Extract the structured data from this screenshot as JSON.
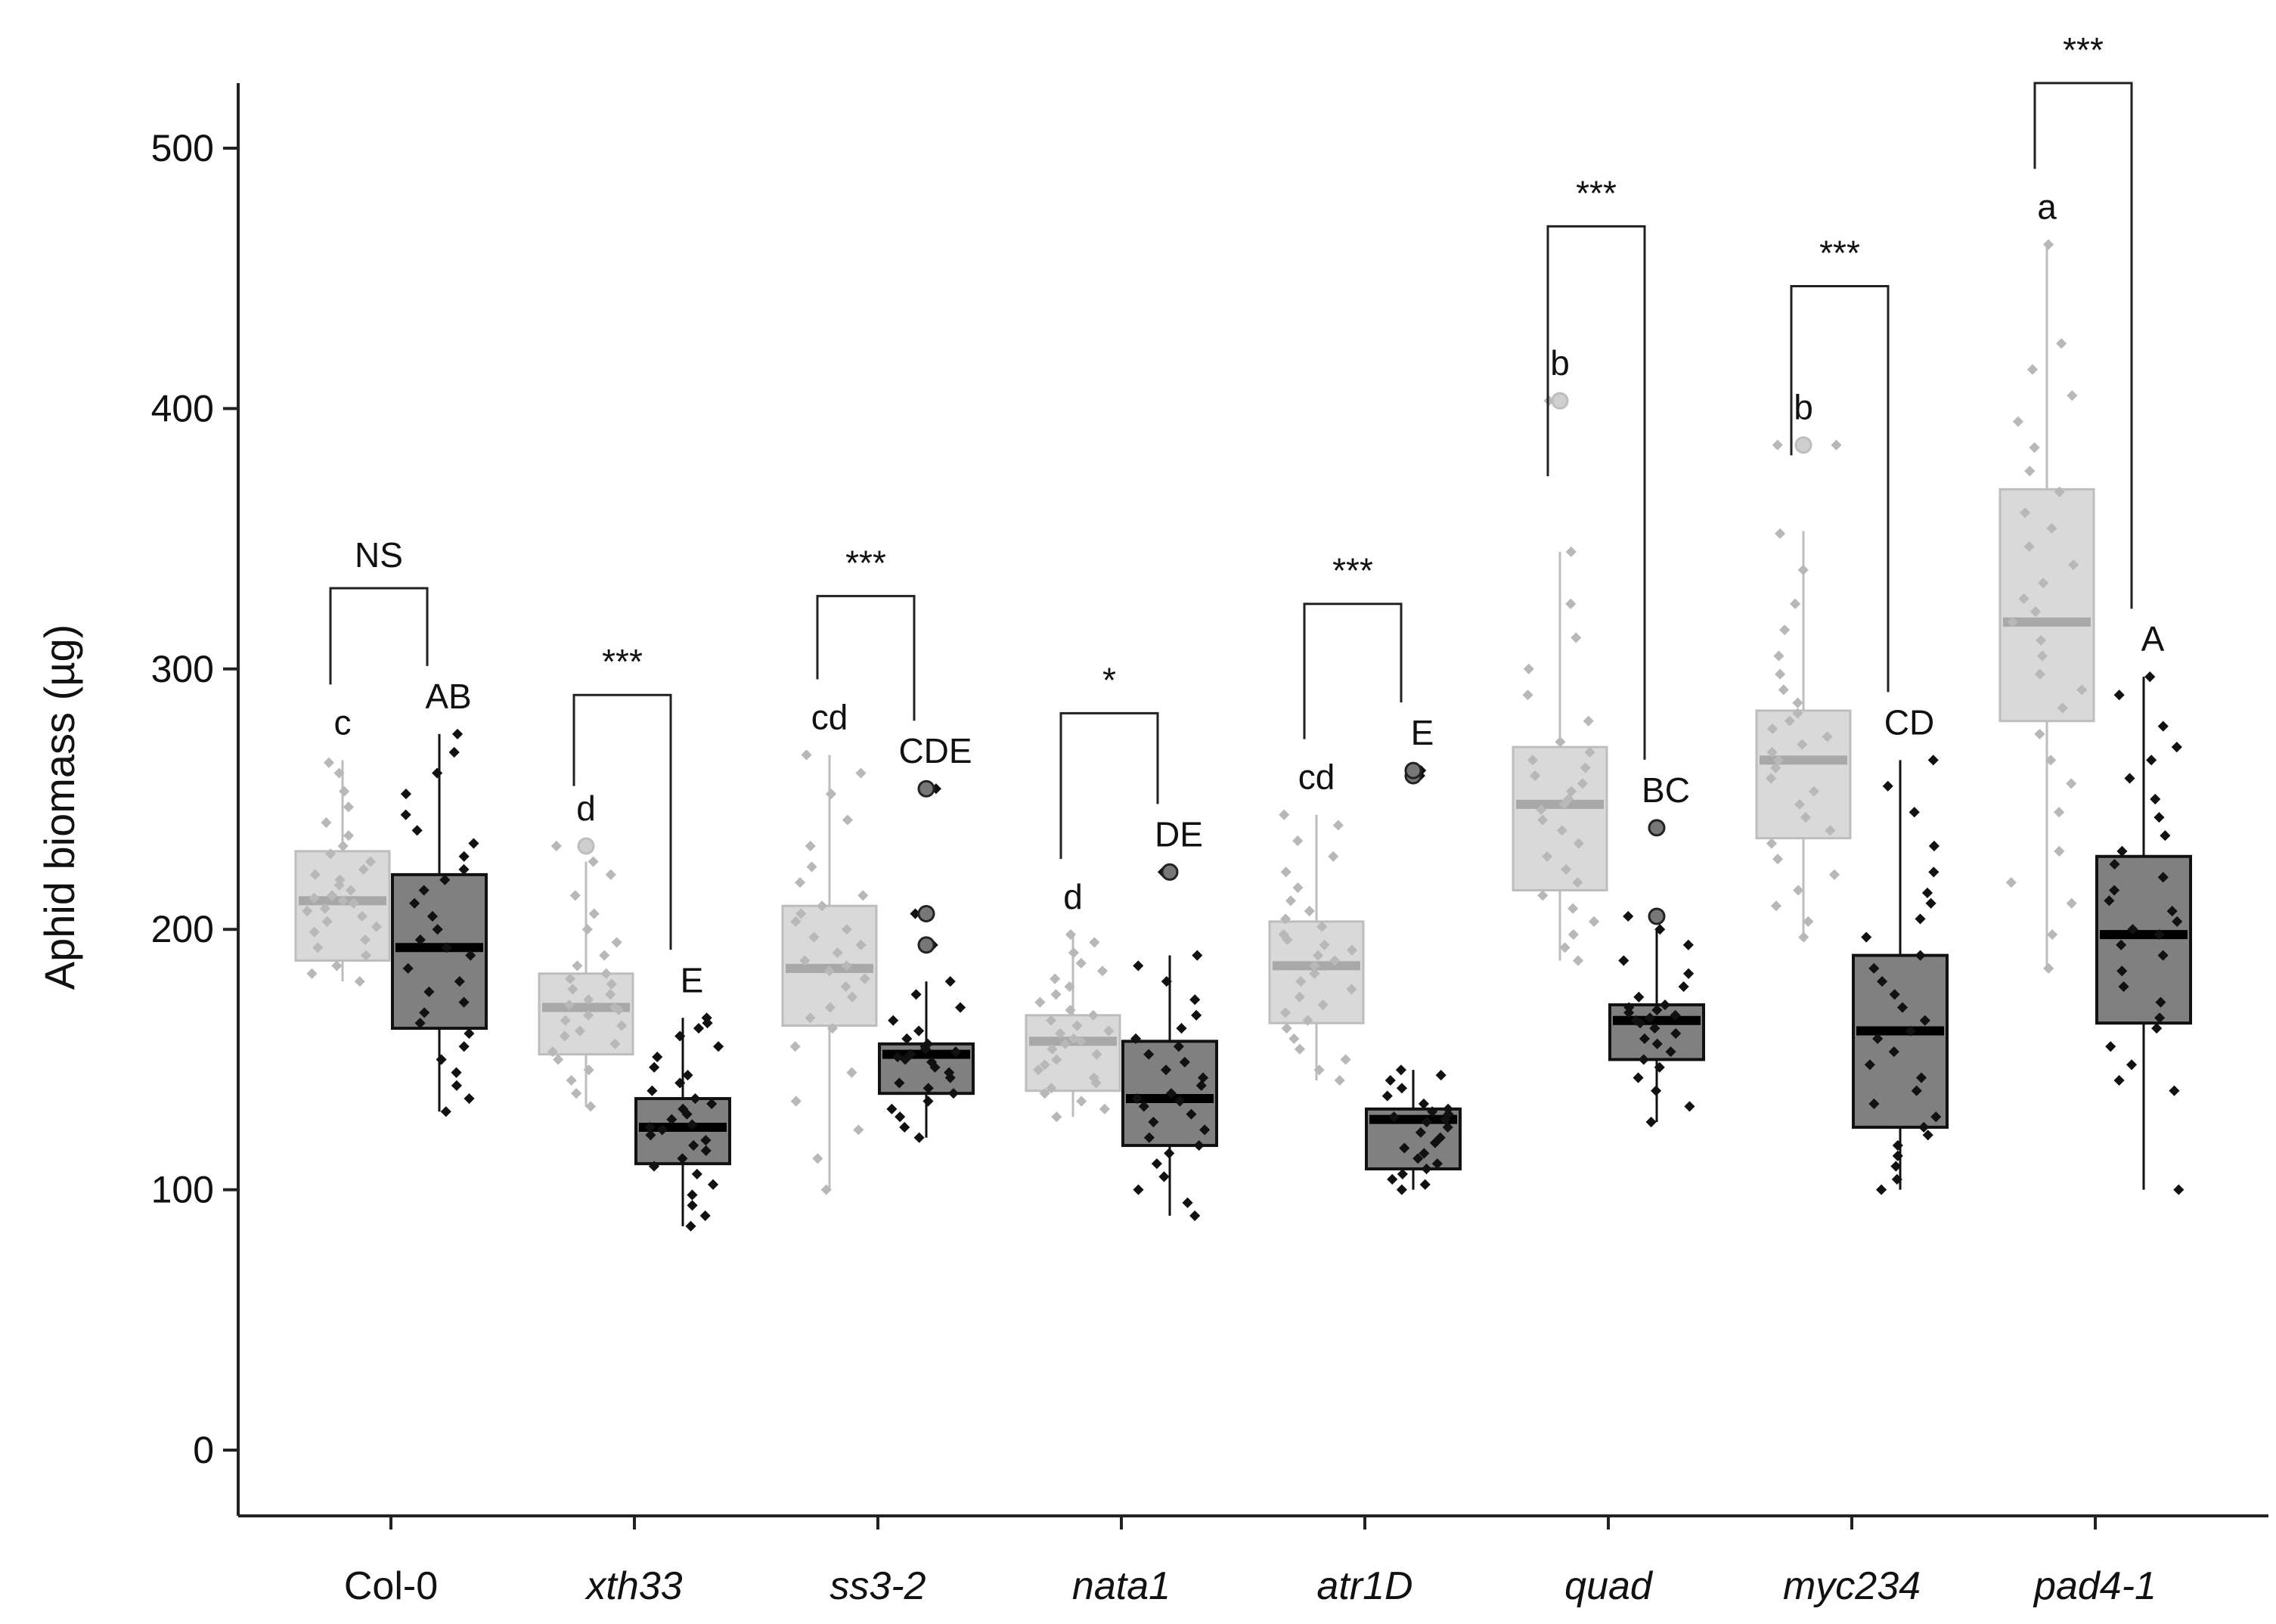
{
  "chart_data": {
    "type": "box",
    "title": "",
    "xlabel": "",
    "ylabel": "Aphid biomass (µg)",
    "ylim": [
      0,
      520
    ],
    "yticks": [
      "0",
      "100",
      "200",
      "300",
      "400",
      "500"
    ],
    "grid": false,
    "categories": [
      "Col-0",
      "xth33",
      "ss3-2",
      "nata1",
      "atr1D",
      "quad",
      "myc234",
      "pad4-1"
    ],
    "italic_categories": [
      false,
      true,
      true,
      true,
      true,
      true,
      true,
      true
    ],
    "series": [
      {
        "name": "light",
        "color": "#c8c8c8",
        "fill": "#d9d9d9",
        "boxes": [
          {
            "q1": 188,
            "median": 211,
            "q3": 230,
            "whisker_low": 180,
            "whisker_high": 265,
            "outliers": [],
            "letter": "c",
            "points": [
              180,
              183,
              186,
              190,
              193,
              196,
              199,
              201,
              203,
              205,
              207,
              208,
              210,
              211,
              212,
              213,
              215,
              217,
              219,
              221,
              223,
              226,
              229,
              232,
              236,
              241,
              247,
              253,
              260,
              264
            ]
          },
          {
            "q1": 152,
            "median": 170,
            "q3": 183,
            "whisker_low": 132,
            "whisker_high": 226,
            "outliers": [
              232
            ],
            "letter": "d",
            "points": [
              132,
              137,
              142,
              146,
              150,
              153,
              156,
              159,
              161,
              163,
              165,
              167,
              169,
              170,
              171,
              173,
              175,
              177,
              179,
              181,
              183,
              186,
              190,
              195,
              200,
              206,
              213,
              221,
              226,
              232
            ]
          },
          {
            "q1": 163,
            "median": 185,
            "q3": 209,
            "whisker_low": 100,
            "whisker_high": 267,
            "outliers": [],
            "letter": "cd",
            "points": [
              100,
              112,
              123,
              134,
              145,
              155,
              162,
              166,
              170,
              174,
              178,
              181,
              184,
              186,
              188,
              191,
              194,
              197,
              200,
              203,
              206,
              209,
              213,
              218,
              224,
              232,
              242,
              252,
              260,
              267
            ]
          },
          {
            "q1": 138,
            "median": 157,
            "q3": 167,
            "whisker_low": 128,
            "whisker_high": 198,
            "outliers": [],
            "letter": "d",
            "points": [
              128,
              131,
              134,
              137,
              139,
              141,
              143,
              146,
              148,
              150,
              152,
              154,
              156,
              157,
              158,
              160,
              161,
              163,
              165,
              167,
              169,
              172,
              175,
              178,
              181,
              184,
              187,
              191,
              195,
              198
            ]
          },
          {
            "q1": 164,
            "median": 186,
            "q3": 203,
            "whisker_low": 142,
            "whisker_high": 244,
            "outliers": [],
            "letter": "cd",
            "points": [
              142,
              146,
              150,
              154,
              158,
              162,
              165,
              168,
              171,
              174,
              177,
              180,
              183,
              186,
              188,
              190,
              192,
              194,
              196,
              198,
              201,
              204,
              207,
              211,
              216,
              222,
              228,
              234,
              240,
              244
            ]
          },
          {
            "q1": 215,
            "median": 248,
            "q3": 270,
            "whisker_low": 188,
            "whisker_high": 345,
            "outliers": [
              403
            ],
            "letter": "b",
            "points": [
              188,
              193,
              198,
              203,
              208,
              213,
              218,
              223,
              228,
              233,
              238,
              242,
              246,
              248,
              250,
              253,
              256,
              259,
              262,
              265,
              268,
              272,
              280,
              290,
              300,
              312,
              325,
              345,
              403,
              403
            ]
          },
          {
            "q1": 235,
            "median": 265,
            "q3": 284,
            "whisker_low": 197,
            "whisker_high": 353,
            "outliers": [
              386
            ],
            "letter": "b",
            "points": [
              197,
              203,
              209,
              215,
              221,
              227,
              233,
              238,
              243,
              248,
              253,
              258,
              262,
              265,
              268,
              271,
              274,
              277,
              280,
              283,
              287,
              292,
              298,
              305,
              315,
              325,
              338,
              352,
              386,
              386
            ]
          },
          {
            "q1": 280,
            "median": 318,
            "q3": 369,
            "whisker_low": 185,
            "whisker_high": 463,
            "outliers": [],
            "letter": "a",
            "points": [
              185,
              198,
              210,
              218,
              230,
              245,
              256,
              265,
              275,
              285,
              292,
              298,
              305,
              311,
              318,
              322,
              327,
              333,
              340,
              347,
              354,
              360,
              368,
              376,
              385,
              395,
              405,
              415,
              425,
              463
            ]
          }
        ]
      },
      {
        "name": "dark",
        "color": "#000000",
        "fill": "#808080",
        "boxes": [
          {
            "q1": 162,
            "median": 193,
            "q3": 221,
            "whisker_low": 130,
            "whisker_high": 275,
            "outliers": [],
            "letter": "AB",
            "points": [
              130,
              135,
              140,
              145,
              150,
              155,
              160,
              164,
              168,
              172,
              176,
              180,
              185,
              190,
              193,
              196,
              200,
              205,
              210,
              215,
              219,
              223,
              228,
              233,
              238,
              244,
              252,
              260,
              268,
              275
            ]
          },
          {
            "q1": 110,
            "median": 124,
            "q3": 135,
            "whisker_low": 86,
            "whisker_high": 166,
            "outliers": [],
            "letter": "E",
            "points": [
              86,
              90,
              94,
              98,
              102,
              106,
              109,
              112,
              115,
              117,
              119,
              121,
              123,
              124,
              125,
              127,
              129,
              131,
              133,
              135,
              138,
              141,
              144,
              147,
              151,
              155,
              159,
              162,
              164,
              166
            ]
          },
          {
            "q1": 137,
            "median": 152,
            "q3": 156,
            "whisker_low": 120,
            "whisker_high": 180,
            "outliers": [
              194,
              206,
              254
            ],
            "letter": "CDE",
            "points": [
              120,
              124,
              128,
              131,
              134,
              137,
              139,
              141,
              143,
              145,
              147,
              149,
              150,
              151,
              152,
              153,
              154,
              155,
              156,
              158,
              161,
              165,
              170,
              175,
              180,
              194,
              206,
              254
            ]
          },
          {
            "q1": 117,
            "median": 135,
            "q3": 157,
            "whisker_low": 90,
            "whisker_high": 190,
            "outliers": [
              222
            ],
            "letter": "DE",
            "points": [
              90,
              95,
              100,
              105,
              110,
              114,
              117,
              120,
              123,
              126,
              129,
              132,
              134,
              135,
              137,
              140,
              143,
              146,
              149,
              152,
              155,
              158,
              162,
              167,
              173,
              180,
              186,
              190,
              222
            ]
          },
          {
            "q1": 108,
            "median": 127,
            "q3": 131,
            "whisker_low": 100,
            "whisker_high": 146,
            "outliers": [
              259,
              261
            ],
            "letter": "E",
            "points": [
              100,
              102,
              104,
              106,
              108,
              110,
              112,
              114,
              116,
              118,
              120,
              122,
              124,
              126,
              127,
              128,
              129,
              130,
              131,
              133,
              136,
              139,
              142,
              144,
              146,
              259,
              261
            ]
          },
          {
            "q1": 150,
            "median": 165,
            "q3": 171,
            "whisker_low": 126,
            "whisker_high": 200,
            "outliers": [
              205,
              239
            ],
            "letter": "BC",
            "points": [
              126,
              132,
              138,
              143,
              147,
              150,
              153,
              156,
              158,
              160,
              162,
              164,
              165,
              166,
              167,
              168,
              169,
              170,
              171,
              174,
              178,
              183,
              188,
              194,
              200,
              205,
              239
            ]
          },
          {
            "q1": 124,
            "median": 161,
            "q3": 190,
            "whisker_low": 100,
            "whisker_high": 265,
            "outliers": [],
            "letter": "CD",
            "points": [
              100,
              104,
              109,
              113,
              117,
              121,
              124,
              128,
              133,
              138,
              143,
              148,
              153,
              158,
              161,
              165,
              170,
              175,
              180,
              185,
              190,
              197,
              204,
              210,
              214,
              222,
              232,
              245,
              255,
              265
            ]
          },
          {
            "q1": 164,
            "median": 198,
            "q3": 228,
            "whisker_low": 100,
            "whisker_high": 297,
            "outliers": [],
            "letter": "A",
            "points": [
              100,
              138,
              142,
              148,
              155,
              162,
              166,
              172,
              178,
              184,
              190,
              194,
              198,
              200,
              203,
              207,
              211,
              215,
              220,
              225,
              230,
              236,
              243,
              250,
              258,
              265,
              270,
              278,
              290,
              297
            ]
          }
        ]
      }
    ],
    "comparisons": [
      {
        "label": "NS",
        "y": 331
      },
      {
        "label": "***",
        "y": 290
      },
      {
        "label": "***",
        "y": 328
      },
      {
        "label": "*",
        "y": 283
      },
      {
        "label": "***",
        "y": 325
      },
      {
        "label": "***",
        "y": 470
      },
      {
        "label": "***",
        "y": 447
      },
      {
        "label": "***",
        "y": 525
      }
    ]
  }
}
